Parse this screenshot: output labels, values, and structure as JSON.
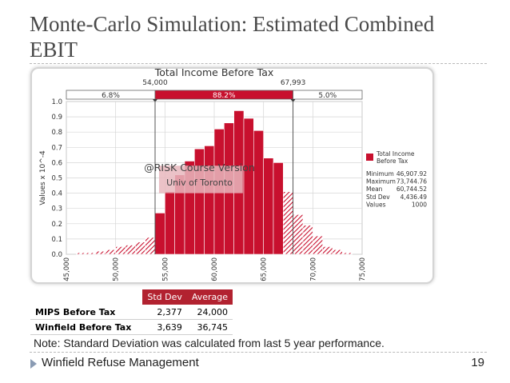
{
  "slide": {
    "title": "Monte-Carlo Simulation: Estimated Combined EBIT",
    "note": "Note: Standard Deviation was calculated from last 5 year performance.",
    "footer": "Winfield Refuse Management",
    "page_number": "19"
  },
  "table": {
    "headers": [
      "",
      "Std Dev",
      "Average"
    ],
    "rows": [
      {
        "label": "MIPS Before Tax",
        "std_dev": "2,377",
        "average": "24,000"
      },
      {
        "label": "Winfield Before Tax",
        "std_dev": "3,639",
        "average": "36,745"
      }
    ]
  },
  "colors": {
    "accent": "#b22230",
    "bar": "#c8102e",
    "bar_light": "#e8b7bd"
  },
  "chart_data": {
    "type": "bar",
    "title": "Total Income Before Tax",
    "ylabel": "Values x 10^-4",
    "xlabel": "",
    "xlim": [
      45000,
      75000
    ],
    "ylim": [
      0,
      1.0
    ],
    "xticks": [
      "45,000",
      "50,000",
      "55,000",
      "60,000",
      "65,000",
      "70,000",
      "75,000"
    ],
    "xtick_values": [
      45000,
      50000,
      55000,
      60000,
      65000,
      70000,
      75000
    ],
    "yticks": [
      "0.0",
      "0.1",
      "0.2",
      "0.3",
      "0.4",
      "0.5",
      "0.6",
      "0.7",
      "0.8",
      "0.9",
      "1.0"
    ],
    "ytick_values": [
      0,
      0.1,
      0.2,
      0.3,
      0.4,
      0.5,
      0.6,
      0.7,
      0.8,
      0.9,
      1.0
    ],
    "bin_width": 1000,
    "bin_starts": [
      46000,
      47000,
      48000,
      49000,
      50000,
      51000,
      52000,
      53000,
      54000,
      55000,
      56000,
      57000,
      58000,
      59000,
      60000,
      61000,
      62000,
      63000,
      64000,
      65000,
      66000,
      67000,
      68000,
      69000,
      70000,
      71000,
      72000,
      73000
    ],
    "values": [
      0.01,
      0.01,
      0.02,
      0.03,
      0.05,
      0.06,
      0.08,
      0.11,
      0.27,
      0.41,
      0.52,
      0.61,
      0.69,
      0.71,
      0.82,
      0.86,
      0.94,
      0.89,
      0.81,
      0.63,
      0.6,
      0.41,
      0.26,
      0.19,
      0.12,
      0.05,
      0.03,
      0.01
    ],
    "markers": {
      "left": {
        "value": 54000,
        "label": "54,000"
      },
      "right": {
        "value": 67993,
        "label": "67,993"
      }
    },
    "probabilities": {
      "left": "6.8%",
      "middle": "88.2%",
      "right": "5.0%"
    },
    "legend": {
      "label_line1": "Total Income",
      "label_line2": "Before Tax",
      "position": "right"
    },
    "stats": [
      {
        "name": "Minimum",
        "value": "46,907.92"
      },
      {
        "name": "Maximum",
        "value": "73,744.76"
      },
      {
        "name": "Mean",
        "value": "60,744.52"
      },
      {
        "name": "Std Dev",
        "value": "4,436.49"
      },
      {
        "name": "Values",
        "value": "1000"
      }
    ],
    "watermark": {
      "line1": "@RISK Course Version",
      "line2": "Univ of Toronto"
    }
  }
}
